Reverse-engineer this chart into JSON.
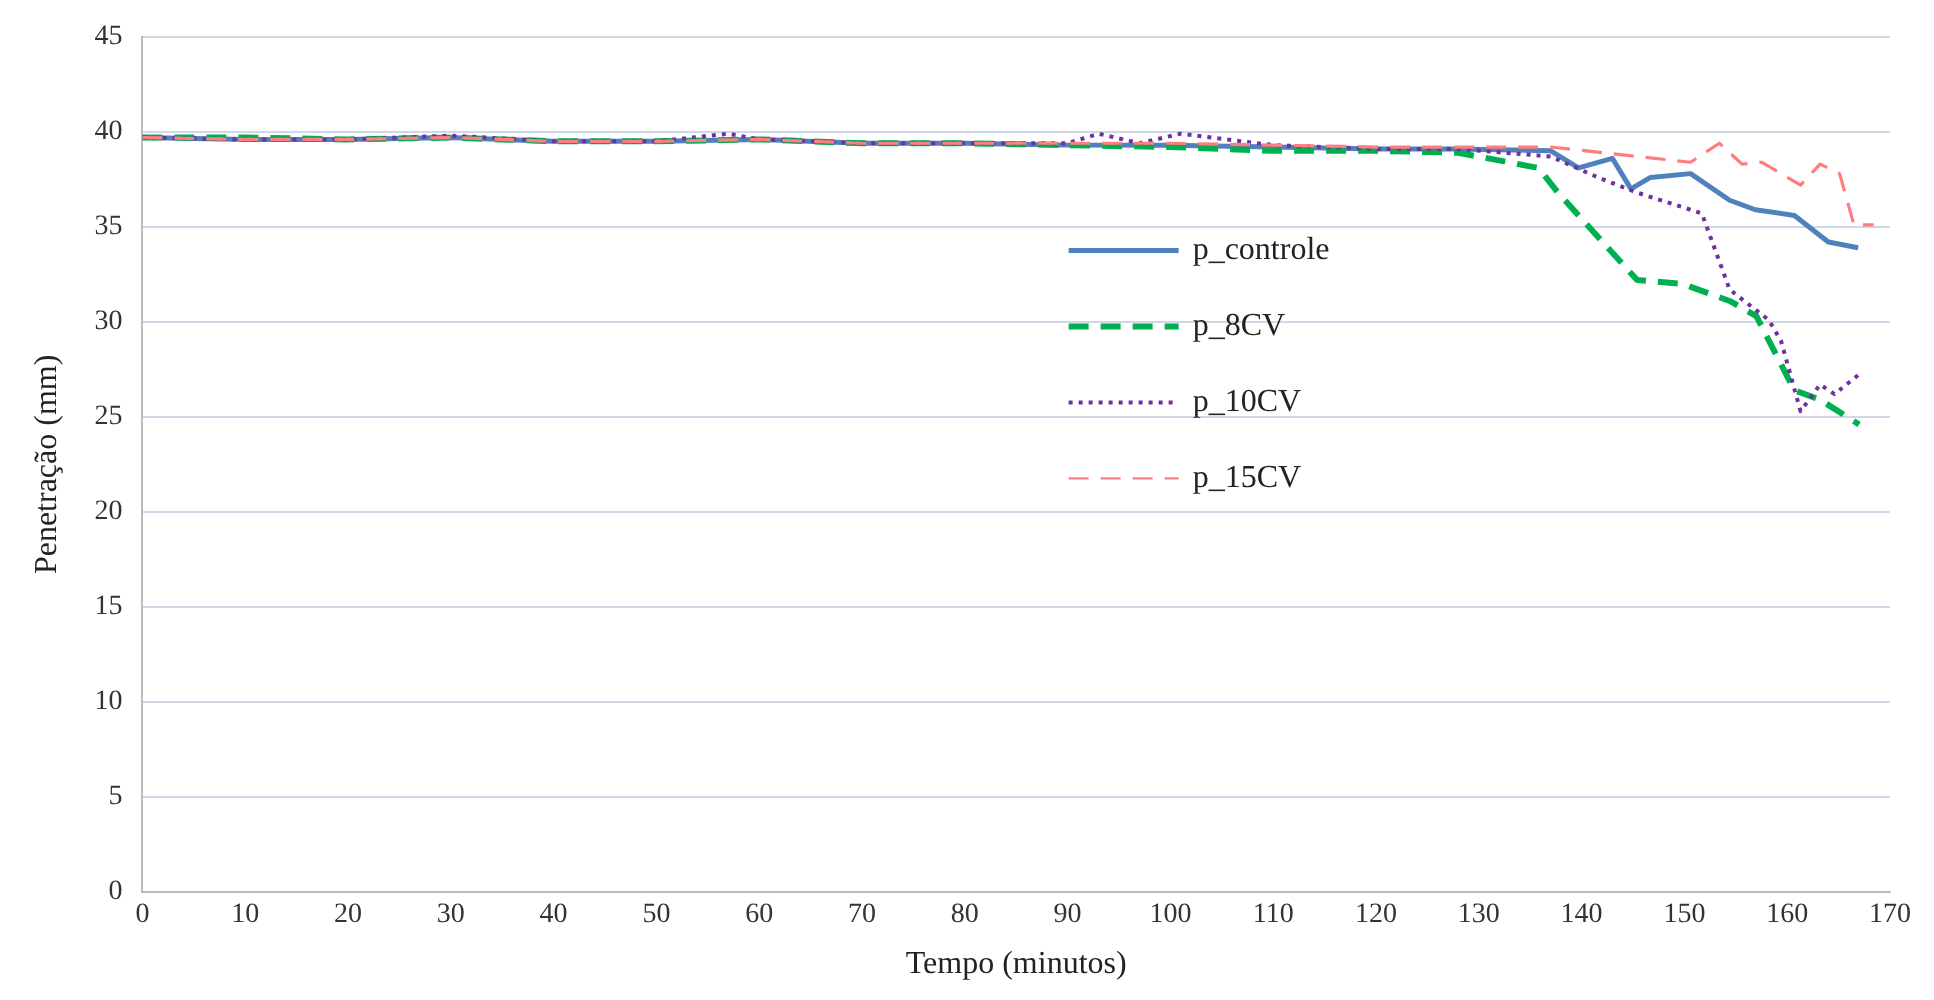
{
  "chart_data": {
    "type": "line",
    "xlabel": "Tempo (minutos)",
    "ylabel": "Penetração (mm)",
    "xlim": [
      0,
      170
    ],
    "xticks": [
      0,
      10,
      20,
      30,
      40,
      50,
      60,
      70,
      80,
      90,
      100,
      110,
      120,
      130,
      140,
      150,
      160,
      170
    ],
    "ylim": [
      0,
      45
    ],
    "yticks": [
      0,
      5,
      10,
      15,
      20,
      25,
      30,
      35,
      40,
      45
    ],
    "grid": "y",
    "legend": "right",
    "marker": "none",
    "series": [
      {
        "name": "p_controle",
        "color": "#4f81bd",
        "line_style": "solid",
        "x": [
          0,
          10,
          20,
          30,
          40,
          50,
          60,
          70,
          80,
          90,
          100,
          110,
          120,
          128,
          137,
          139.7,
          143,
          144.8,
          146.7,
          150.6,
          154.4,
          156.9,
          160.7,
          164,
          166.9
        ],
        "values": [
          39.7,
          39.6,
          39.6,
          39.7,
          39.5,
          39.5,
          39.6,
          39.4,
          39.4,
          39.3,
          39.3,
          39.2,
          39.1,
          39.1,
          39,
          38.1,
          38.6,
          37,
          37.6,
          37.8,
          36.4,
          35.9,
          35.6,
          34.2,
          33.9
        ]
      },
      {
        "name": "p_8CV",
        "color": "#00b050",
        "line_style": "dashed",
        "x": [
          0,
          10,
          20,
          30,
          40,
          50,
          60,
          70,
          80,
          90,
          100,
          110,
          120,
          128,
          135.8,
          137.7,
          145.4,
          149.8,
          154.4,
          157,
          160.7,
          163.2,
          167
        ],
        "values": [
          39.7,
          39.7,
          39.6,
          39.7,
          39.5,
          39.5,
          39.6,
          39.4,
          39.4,
          39.3,
          39.2,
          39,
          39,
          38.9,
          38.1,
          36.8,
          32.2,
          32,
          31.1,
          30.3,
          26.4,
          25.9,
          24.6
        ]
      },
      {
        "name": "p_10CV",
        "color": "#7030a0",
        "line_style": "dotted",
        "x": [
          0,
          10,
          20,
          30,
          40,
          50,
          57,
          60,
          70,
          80,
          90,
          93,
          97,
          101,
          110,
          120,
          128,
          137,
          141.6,
          145.4,
          150.6,
          151.7,
          154.4,
          158.2,
          159.4,
          161.3,
          163.2,
          164.6,
          166.9
        ],
        "values": [
          39.7,
          39.6,
          39.6,
          39.8,
          39.5,
          39.5,
          39.9,
          39.6,
          39.4,
          39.4,
          39.4,
          39.9,
          39.4,
          39.9,
          39.3,
          39.1,
          39.1,
          38.7,
          37.6,
          36.8,
          35.9,
          35.7,
          31.7,
          30.1,
          29,
          25.3,
          26.7,
          26.2,
          27.2
        ]
      },
      {
        "name": "p_15CV",
        "color": "#ff7c80",
        "line_style": "dashed",
        "x": [
          0,
          10,
          20,
          30,
          40,
          50,
          60,
          70,
          80,
          90,
          100,
          110,
          120,
          128,
          137,
          150.6,
          153.4,
          155.6,
          157.5,
          161.3,
          163.2,
          165.1,
          166.5,
          168.4
        ],
        "values": [
          39.7,
          39.6,
          39.6,
          39.7,
          39.5,
          39.5,
          39.6,
          39.4,
          39.4,
          39.4,
          39.4,
          39.3,
          39.2,
          39.2,
          39.2,
          38.4,
          39.4,
          38.3,
          38.4,
          37.2,
          38.3,
          37.8,
          35.1,
          35.1
        ]
      }
    ]
  }
}
